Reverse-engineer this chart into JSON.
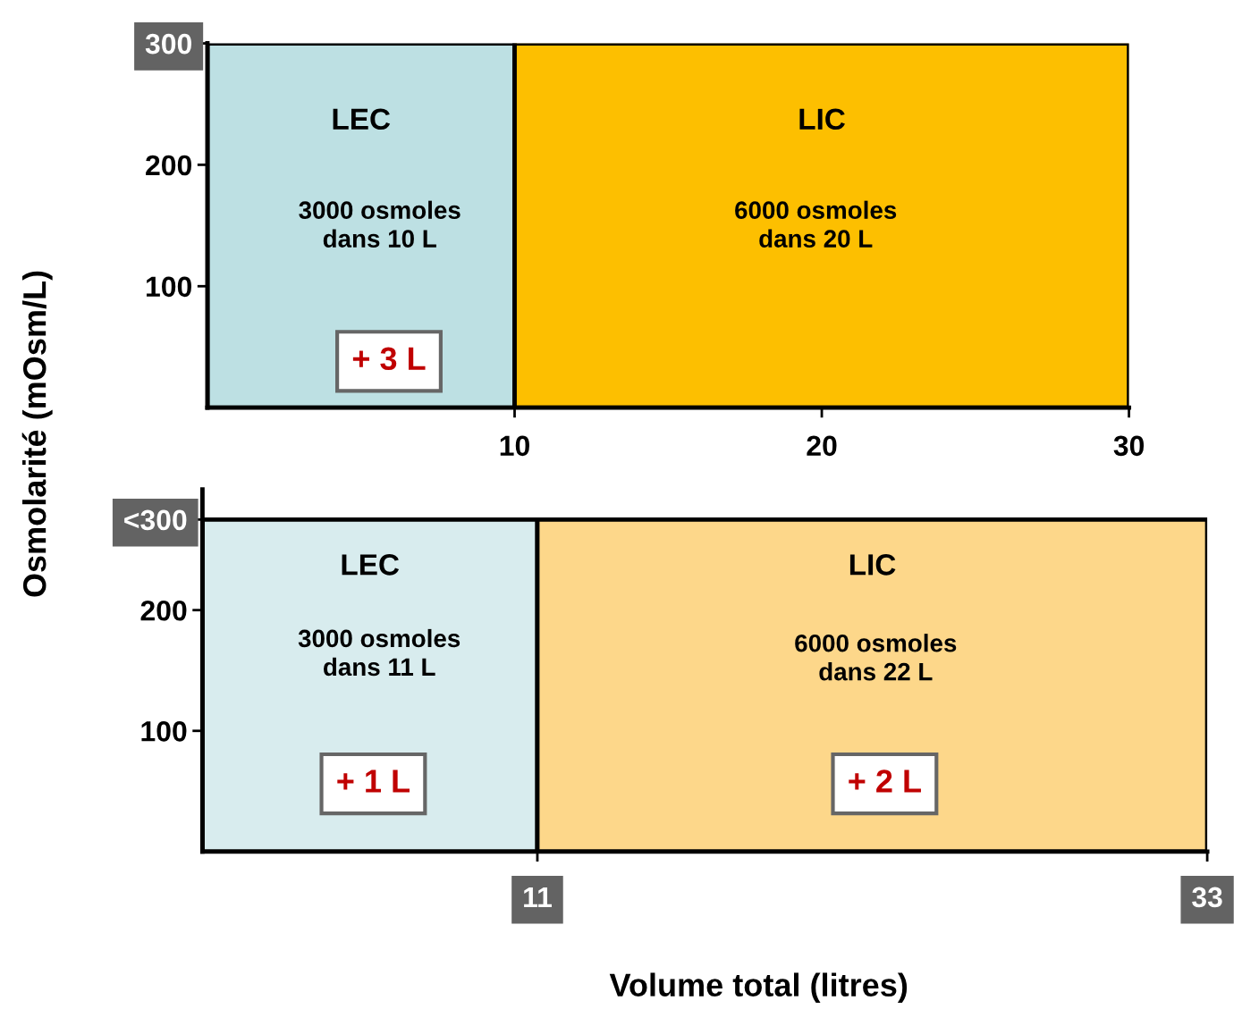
{
  "chart_data": [
    {
      "type": "area",
      "xlim": [
        0,
        30
      ],
      "ylim": [
        0,
        300
      ],
      "xticks": [
        10,
        20,
        30
      ],
      "yticks": [
        100,
        200,
        300
      ],
      "grid": false,
      "legend": false,
      "ylabel": "Osmolarité (mOsm/L)",
      "series": [
        {
          "name": "LEC",
          "color": "#bde0e3",
          "x": [
            0,
            10
          ],
          "values": [
            300,
            300
          ]
        },
        {
          "name": "LIC",
          "color": "#fdbf00",
          "x": [
            10,
            30
          ],
          "values": [
            300,
            300
          ]
        }
      ],
      "annotations": [
        "3000 osmoles\ndans 10 L",
        "+ 3 L",
        "6000 osmoles\ndans 20 L"
      ]
    },
    {
      "type": "area",
      "xlim": [
        0,
        33
      ],
      "ylim": [
        0,
        300
      ],
      "xticks": [
        11,
        33
      ],
      "yticks": [
        100,
        200,
        {
          "value": 275,
          "label": "<300"
        }
      ],
      "grid": false,
      "legend": false,
      "xlabel": "Volume total (litres)",
      "series": [
        {
          "name": "LEC",
          "color": "#d8ecee",
          "x": [
            0,
            11
          ],
          "values": [
            275,
            275
          ]
        },
        {
          "name": "LIC",
          "color": "#fdd78a",
          "x": [
            11,
            33
          ],
          "values": [
            275,
            275
          ]
        }
      ],
      "annotations": [
        "3000 osmoles\ndans 11 L",
        "+ 1 L",
        "6000 osmoles\ndans 22 L",
        "+ 2 L"
      ]
    }
  ]
}
